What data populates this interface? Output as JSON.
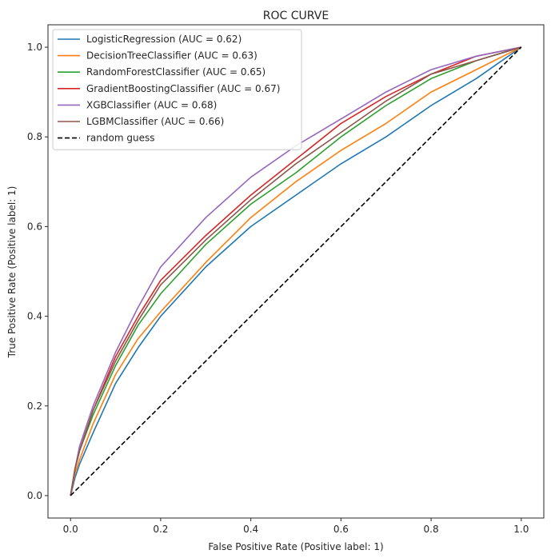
{
  "chart_data": {
    "type": "line",
    "title": "ROC CURVE",
    "xlabel": "False Positive Rate (Positive label: 1)",
    "ylabel": "True Positive Rate (Positive label: 1)",
    "xlim": [
      -0.05,
      1.05
    ],
    "ylim": [
      -0.05,
      1.05
    ],
    "xticks": [
      "0.0",
      "0.2",
      "0.4",
      "0.6",
      "0.8",
      "1.0"
    ],
    "yticks": [
      "0.0",
      "0.2",
      "0.4",
      "0.6",
      "0.8",
      "1.0"
    ],
    "grid": false,
    "legend_position": "top-left",
    "x": [
      0,
      0.01,
      0.02,
      0.05,
      0.1,
      0.15,
      0.2,
      0.3,
      0.4,
      0.5,
      0.6,
      0.7,
      0.8,
      0.9,
      1.0
    ],
    "series": [
      {
        "name": "LogisticRegression (AUC = 0.62)",
        "color": "#1f77b4",
        "style": "solid",
        "values": [
          0,
          0.04,
          0.07,
          0.14,
          0.25,
          0.33,
          0.4,
          0.51,
          0.6,
          0.67,
          0.74,
          0.8,
          0.87,
          0.93,
          1.0
        ]
      },
      {
        "name": "DecisionTreeClassifier (AUC = 0.63)",
        "color": "#ff7f0e",
        "style": "solid",
        "values": [
          0,
          0.05,
          0.08,
          0.16,
          0.27,
          0.35,
          0.41,
          0.52,
          0.62,
          0.7,
          0.77,
          0.83,
          0.9,
          0.95,
          1.0
        ]
      },
      {
        "name": "RandomForestClassifier (AUC = 0.65)",
        "color": "#2ca02c",
        "style": "solid",
        "values": [
          0,
          0.06,
          0.1,
          0.18,
          0.29,
          0.38,
          0.45,
          0.56,
          0.65,
          0.72,
          0.8,
          0.87,
          0.93,
          0.97,
          1.0
        ]
      },
      {
        "name": "GradientBoostingClassifier (AUC = 0.67)",
        "color": "#d62728",
        "style": "solid",
        "values": [
          0,
          0.06,
          0.1,
          0.19,
          0.31,
          0.4,
          0.48,
          0.58,
          0.67,
          0.75,
          0.83,
          0.89,
          0.94,
          0.98,
          1.0
        ]
      },
      {
        "name": "XGBClassifier (AUC = 0.68)",
        "color": "#9467bd",
        "style": "solid",
        "values": [
          0,
          0.06,
          0.11,
          0.2,
          0.32,
          0.42,
          0.51,
          0.62,
          0.71,
          0.78,
          0.84,
          0.9,
          0.95,
          0.98,
          1.0
        ]
      },
      {
        "name": "LGBMClassifier (AUC = 0.66)",
        "color": "#8c564b",
        "style": "solid",
        "values": [
          0,
          0.06,
          0.1,
          0.19,
          0.3,
          0.39,
          0.47,
          0.57,
          0.66,
          0.74,
          0.81,
          0.88,
          0.94,
          0.97,
          1.0
        ]
      },
      {
        "name": "random guess",
        "color": "#000000",
        "style": "dashed",
        "values": [
          0,
          0.01,
          0.02,
          0.05,
          0.1,
          0.15,
          0.2,
          0.3,
          0.4,
          0.5,
          0.6,
          0.7,
          0.8,
          0.9,
          1.0
        ]
      }
    ]
  }
}
